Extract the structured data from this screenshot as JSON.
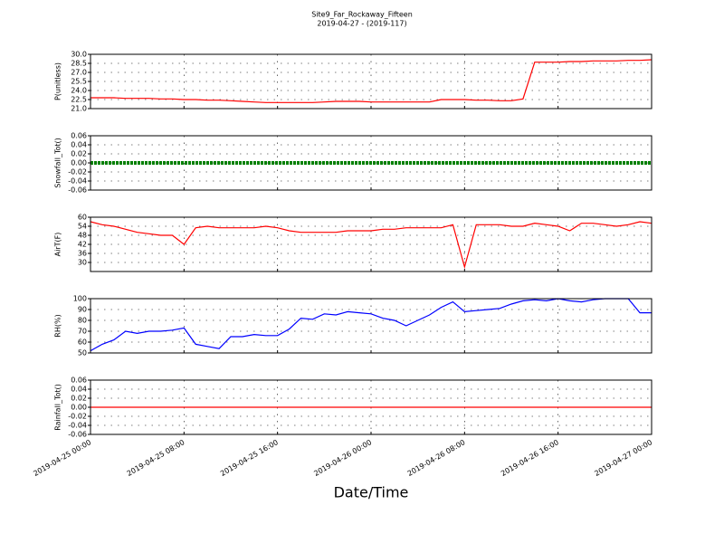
{
  "title": "Site9_Far_Rockaway_Fifteen",
  "subtitle": "2019-04-27 - (2019-117)",
  "xlabel": "Date/Time",
  "chart_data": [
    {
      "type": "line",
      "ylabel": "P(unitless)",
      "color": "#ff0000",
      "x": [
        "2019-04-25 00:00",
        "2019-04-25 01:00",
        "2019-04-25 02:00",
        "2019-04-25 03:00",
        "2019-04-25 04:00",
        "2019-04-25 05:00",
        "2019-04-25 06:00",
        "2019-04-25 07:00",
        "2019-04-25 08:00",
        "2019-04-25 09:00",
        "2019-04-25 10:00",
        "2019-04-25 11:00",
        "2019-04-25 12:00",
        "2019-04-25 13:00",
        "2019-04-25 14:00",
        "2019-04-25 15:00",
        "2019-04-25 16:00",
        "2019-04-25 17:00",
        "2019-04-25 18:00",
        "2019-04-25 19:00",
        "2019-04-25 20:00",
        "2019-04-25 21:00",
        "2019-04-25 22:00",
        "2019-04-25 23:00",
        "2019-04-26 00:00",
        "2019-04-26 01:00",
        "2019-04-26 02:00",
        "2019-04-26 03:00",
        "2019-04-26 04:00",
        "2019-04-26 05:00",
        "2019-04-26 06:00",
        "2019-04-26 07:00",
        "2019-04-26 08:00",
        "2019-04-26 09:00",
        "2019-04-26 10:00",
        "2019-04-26 11:00",
        "2019-04-26 12:00",
        "2019-04-26 13:00",
        "2019-04-26 14:00",
        "2019-04-26 15:00",
        "2019-04-26 16:00",
        "2019-04-26 17:00",
        "2019-04-26 18:00",
        "2019-04-26 19:00",
        "2019-04-26 20:00",
        "2019-04-26 21:00",
        "2019-04-26 22:00",
        "2019-04-26 23:00",
        "2019-04-27 00:00"
      ],
      "values": [
        22.8,
        22.8,
        22.8,
        22.7,
        22.7,
        22.7,
        22.6,
        22.6,
        22.5,
        22.5,
        22.4,
        22.4,
        22.3,
        22.2,
        22.1,
        22.0,
        22.0,
        22.0,
        22.0,
        22.0,
        22.1,
        22.2,
        22.2,
        22.2,
        22.1,
        22.1,
        22.1,
        22.1,
        22.1,
        22.1,
        22.5,
        22.5,
        22.5,
        22.4,
        22.4,
        22.3,
        22.3,
        22.6,
        28.7,
        28.7,
        28.7,
        28.8,
        28.8,
        28.9,
        28.9,
        28.9,
        29.0,
        29.0,
        29.1
      ],
      "xlim": [
        "2019-04-25 00:00",
        "2019-04-27 00:00"
      ],
      "xticks": [
        "2019-04-25 00:00",
        "2019-04-25 08:00",
        "2019-04-25 16:00",
        "2019-04-26 00:00",
        "2019-04-26 08:00",
        "2019-04-26 16:00",
        "2019-04-27 00:00"
      ],
      "ylim": [
        21.0,
        30.0
      ],
      "yticks": [
        {
          "value": 21,
          "label": "21.0"
        },
        22.5,
        {
          "value": 24,
          "label": "24.0"
        },
        25.5,
        {
          "value": 27,
          "label": "27.0"
        },
        28.5,
        {
          "value": 30,
          "label": "30.0"
        }
      ],
      "grid": true
    },
    {
      "type": "line",
      "ylabel": "Snowfall_Tot()",
      "color": "#008000",
      "dotted": true,
      "x": [
        "2019-04-25 00:00",
        "2019-04-27 00:00"
      ],
      "values": [
        0,
        0
      ],
      "xlim": [
        "2019-04-25 00:00",
        "2019-04-27 00:00"
      ],
      "xticks": [
        "2019-04-25 00:00",
        "2019-04-25 08:00",
        "2019-04-25 16:00",
        "2019-04-26 00:00",
        "2019-04-26 08:00",
        "2019-04-26 16:00",
        "2019-04-27 00:00"
      ],
      "ylim": [
        -0.06,
        0.06
      ],
      "yticks": [
        -0.06,
        -0.04,
        -0.02,
        {
          "value": 0,
          "label": "0.00"
        },
        0.02,
        0.04,
        0.06
      ],
      "grid": true
    },
    {
      "type": "line",
      "ylabel": "AirT(F)",
      "color": "#ff0000",
      "x": [
        "2019-04-25 00:00",
        "2019-04-25 01:00",
        "2019-04-25 02:00",
        "2019-04-25 03:00",
        "2019-04-25 04:00",
        "2019-04-25 05:00",
        "2019-04-25 06:00",
        "2019-04-25 07:00",
        "2019-04-25 08:00",
        "2019-04-25 09:00",
        "2019-04-25 10:00",
        "2019-04-25 11:00",
        "2019-04-25 12:00",
        "2019-04-25 13:00",
        "2019-04-25 14:00",
        "2019-04-25 15:00",
        "2019-04-25 16:00",
        "2019-04-25 17:00",
        "2019-04-25 18:00",
        "2019-04-25 19:00",
        "2019-04-25 20:00",
        "2019-04-25 21:00",
        "2019-04-25 22:00",
        "2019-04-25 23:00",
        "2019-04-26 00:00",
        "2019-04-26 01:00",
        "2019-04-26 02:00",
        "2019-04-26 03:00",
        "2019-04-26 04:00",
        "2019-04-26 05:00",
        "2019-04-26 06:00",
        "2019-04-26 07:00",
        "2019-04-26 08:00",
        "2019-04-26 09:00",
        "2019-04-26 10:00",
        "2019-04-26 11:00",
        "2019-04-26 12:00",
        "2019-04-26 13:00",
        "2019-04-26 14:00",
        "2019-04-26 15:00",
        "2019-04-26 16:00",
        "2019-04-26 17:00",
        "2019-04-26 18:00",
        "2019-04-26 19:00",
        "2019-04-26 20:00",
        "2019-04-26 21:00",
        "2019-04-26 22:00",
        "2019-04-26 23:00",
        "2019-04-27 00:00"
      ],
      "values": [
        57,
        55,
        54,
        52,
        50,
        49,
        48,
        48,
        42,
        53,
        54,
        53,
        53,
        53,
        53,
        54,
        53,
        51,
        50,
        50,
        50,
        50,
        51,
        51,
        51,
        52,
        52,
        53,
        53,
        53,
        53,
        55,
        27,
        55,
        55,
        55,
        54,
        54,
        56,
        55,
        54,
        51,
        56,
        56,
        55,
        54,
        55,
        57,
        56
      ],
      "xlim": [
        "2019-04-25 00:00",
        "2019-04-27 00:00"
      ],
      "xticks": [
        "2019-04-25 00:00",
        "2019-04-25 08:00",
        "2019-04-25 16:00",
        "2019-04-26 00:00",
        "2019-04-26 08:00",
        "2019-04-26 16:00",
        "2019-04-27 00:00"
      ],
      "ylim": [
        24,
        60
      ],
      "yticks": [
        30,
        36,
        42,
        48,
        54,
        60
      ],
      "grid": true
    },
    {
      "type": "line",
      "ylabel": "RH(%)",
      "color": "#0000ff",
      "x": [
        "2019-04-25 00:00",
        "2019-04-25 01:00",
        "2019-04-25 02:00",
        "2019-04-25 03:00",
        "2019-04-25 04:00",
        "2019-04-25 05:00",
        "2019-04-25 06:00",
        "2019-04-25 07:00",
        "2019-04-25 08:00",
        "2019-04-25 09:00",
        "2019-04-25 10:00",
        "2019-04-25 11:00",
        "2019-04-25 12:00",
        "2019-04-25 13:00",
        "2019-04-25 14:00",
        "2019-04-25 15:00",
        "2019-04-25 16:00",
        "2019-04-25 17:00",
        "2019-04-25 18:00",
        "2019-04-25 19:00",
        "2019-04-25 20:00",
        "2019-04-25 21:00",
        "2019-04-25 22:00",
        "2019-04-25 23:00",
        "2019-04-26 00:00",
        "2019-04-26 01:00",
        "2019-04-26 02:00",
        "2019-04-26 03:00",
        "2019-04-26 04:00",
        "2019-04-26 05:00",
        "2019-04-26 06:00",
        "2019-04-26 07:00",
        "2019-04-26 08:00",
        "2019-04-26 09:00",
        "2019-04-26 10:00",
        "2019-04-26 11:00",
        "2019-04-26 12:00",
        "2019-04-26 13:00",
        "2019-04-26 14:00",
        "2019-04-26 15:00",
        "2019-04-26 16:00",
        "2019-04-26 17:00",
        "2019-04-26 18:00",
        "2019-04-26 19:00",
        "2019-04-26 20:00",
        "2019-04-26 21:00",
        "2019-04-26 22:00",
        "2019-04-26 23:00",
        "2019-04-27 00:00"
      ],
      "values": [
        52,
        58,
        62,
        70,
        68,
        70,
        70,
        71,
        73,
        58,
        56,
        54,
        65,
        65,
        67,
        66,
        66,
        72,
        82,
        81,
        86,
        85,
        88,
        87,
        86,
        82,
        80,
        75,
        80,
        85,
        92,
        97,
        88,
        89,
        90,
        91,
        95,
        98,
        99,
        98,
        100,
        98,
        97,
        99,
        100,
        100,
        100,
        87,
        87
      ],
      "xlim": [
        "2019-04-25 00:00",
        "2019-04-27 00:00"
      ],
      "xticks": [
        "2019-04-25 00:00",
        "2019-04-25 08:00",
        "2019-04-25 16:00",
        "2019-04-26 00:00",
        "2019-04-26 08:00",
        "2019-04-26 16:00",
        "2019-04-27 00:00"
      ],
      "ylim": [
        50,
        100
      ],
      "yticks": [
        50,
        60,
        70,
        80,
        90,
        100
      ],
      "grid": true
    },
    {
      "type": "line",
      "ylabel": "Rainfall_Tot()",
      "color": "#ff0000",
      "x": [
        "2019-04-25 00:00",
        "2019-04-27 00:00"
      ],
      "values": [
        0,
        0
      ],
      "xlim": [
        "2019-04-25 00:00",
        "2019-04-27 00:00"
      ],
      "xticks": [
        "2019-04-25 00:00",
        "2019-04-25 08:00",
        "2019-04-25 16:00",
        "2019-04-26 00:00",
        "2019-04-26 08:00",
        "2019-04-26 16:00",
        "2019-04-27 00:00"
      ],
      "ylim": [
        -0.06,
        0.06
      ],
      "yticks": [
        -0.06,
        -0.04,
        -0.02,
        {
          "value": 0,
          "label": "0.00"
        },
        0.02,
        0.04,
        0.06
      ],
      "grid": true
    }
  ]
}
